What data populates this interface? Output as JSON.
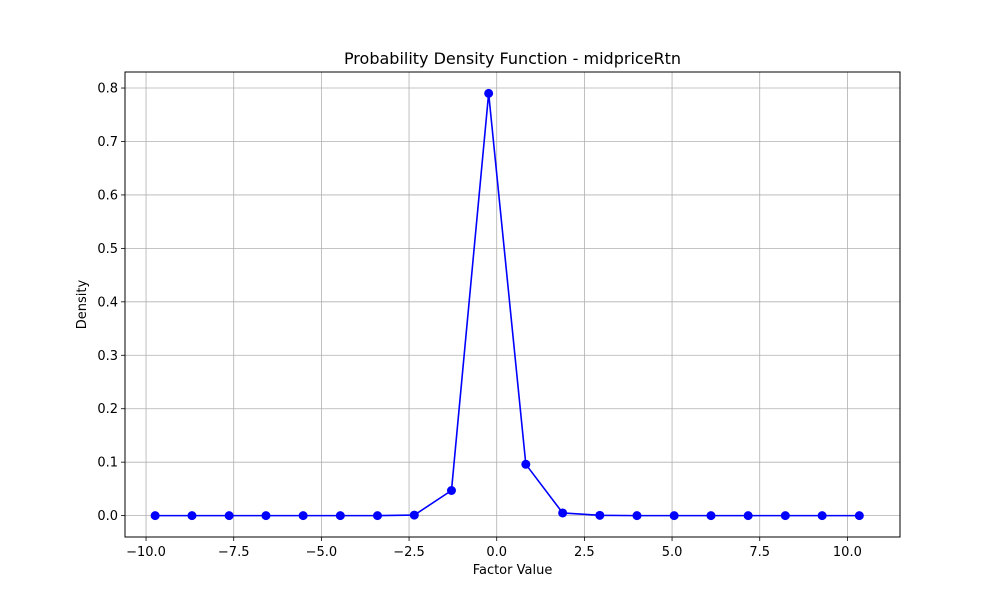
{
  "chart_data": {
    "type": "line",
    "title": "Probability Density Function - midpriceRtn",
    "xlabel": "Factor Value",
    "ylabel": "Density",
    "xlim": [
      -10.6,
      11.5
    ],
    "ylim": [
      -0.04,
      0.83
    ],
    "xticks": [
      -10.0,
      -7.5,
      -5.0,
      -2.5,
      0.0,
      2.5,
      5.0,
      7.5,
      10.0
    ],
    "xtick_labels": [
      "−10.0",
      "−7.5",
      "−5.0",
      "−2.5",
      "0.0",
      "2.5",
      "5.0",
      "7.5",
      "10.0"
    ],
    "yticks": [
      0.0,
      0.1,
      0.2,
      0.3,
      0.4,
      0.5,
      0.6,
      0.7,
      0.8
    ],
    "ytick_labels": [
      "0.0",
      "0.1",
      "0.2",
      "0.3",
      "0.4",
      "0.5",
      "0.6",
      "0.7",
      "0.8"
    ],
    "grid": true,
    "marker": "circle",
    "color": "#0000ff",
    "series": [
      {
        "x": [
          -9.74,
          -8.69,
          -7.63,
          -6.58,
          -5.52,
          -4.46,
          -3.4,
          -2.35,
          -1.29,
          -0.23,
          0.83,
          1.88,
          2.94,
          4.0,
          5.06,
          6.11,
          7.17,
          8.23,
          9.28,
          10.34
        ],
        "y": [
          0.0,
          0.0,
          0.0,
          0.0,
          0.0,
          0.0,
          0.0,
          0.001,
          0.047,
          0.79,
          0.096,
          0.005,
          0.0005,
          0.0,
          0.0,
          0.0,
          0.0,
          0.0,
          0.0,
          0.0
        ]
      }
    ]
  }
}
